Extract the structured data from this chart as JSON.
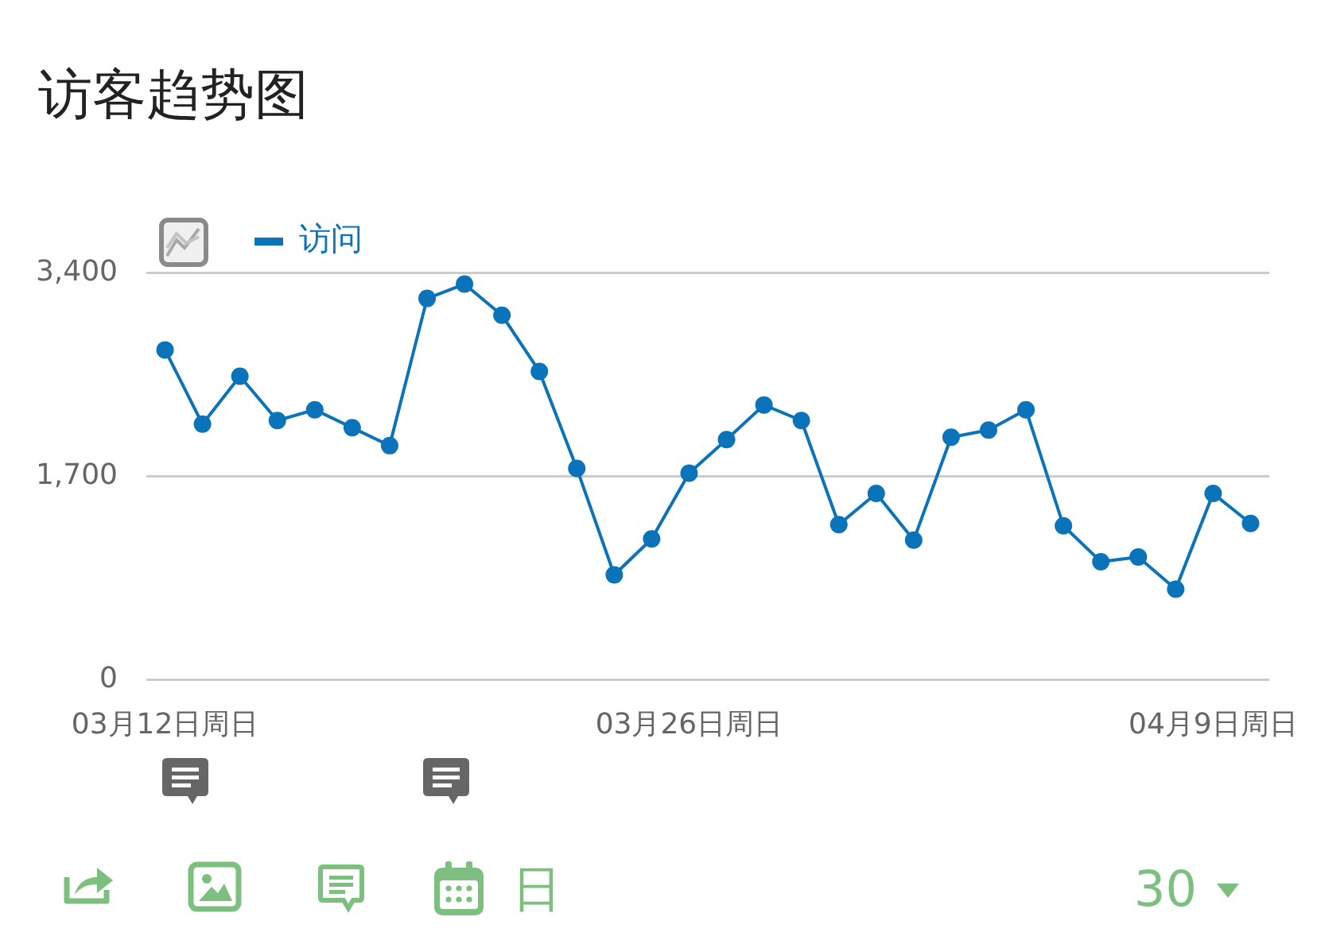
{
  "chart_data": {
    "type": "line",
    "title": "访客趋势图",
    "categories": [
      "03月12日周日",
      null,
      null,
      null,
      null,
      null,
      null,
      null,
      null,
      null,
      null,
      null,
      null,
      null,
      "03月26日周日",
      null,
      null,
      null,
      null,
      null,
      null,
      null,
      null,
      null,
      null,
      null,
      null,
      null,
      "04月9日周日",
      null
    ],
    "series": [
      {
        "name": "访问",
        "color": "#0a73b9",
        "values": [
          2760,
          2140,
          2540,
          2170,
          2260,
          2110,
          1960,
          3190,
          3310,
          3050,
          2580,
          1770,
          880,
          1180,
          1730,
          2010,
          2300,
          2170,
          1300,
          1560,
          1170,
          2030,
          2090,
          2260,
          1290,
          990,
          1030,
          760,
          1560,
          1310
        ]
      }
    ],
    "ylim": [
      0,
      3400
    ],
    "yticks": [
      0,
      {
        "value": 1700,
        "label": "1,700"
      },
      {
        "value": 3400,
        "label": "3,400"
      }
    ],
    "grid": "y",
    "legend": "top left",
    "marker": "circle",
    "annotations": [
      "日",
      "30"
    ]
  }
}
